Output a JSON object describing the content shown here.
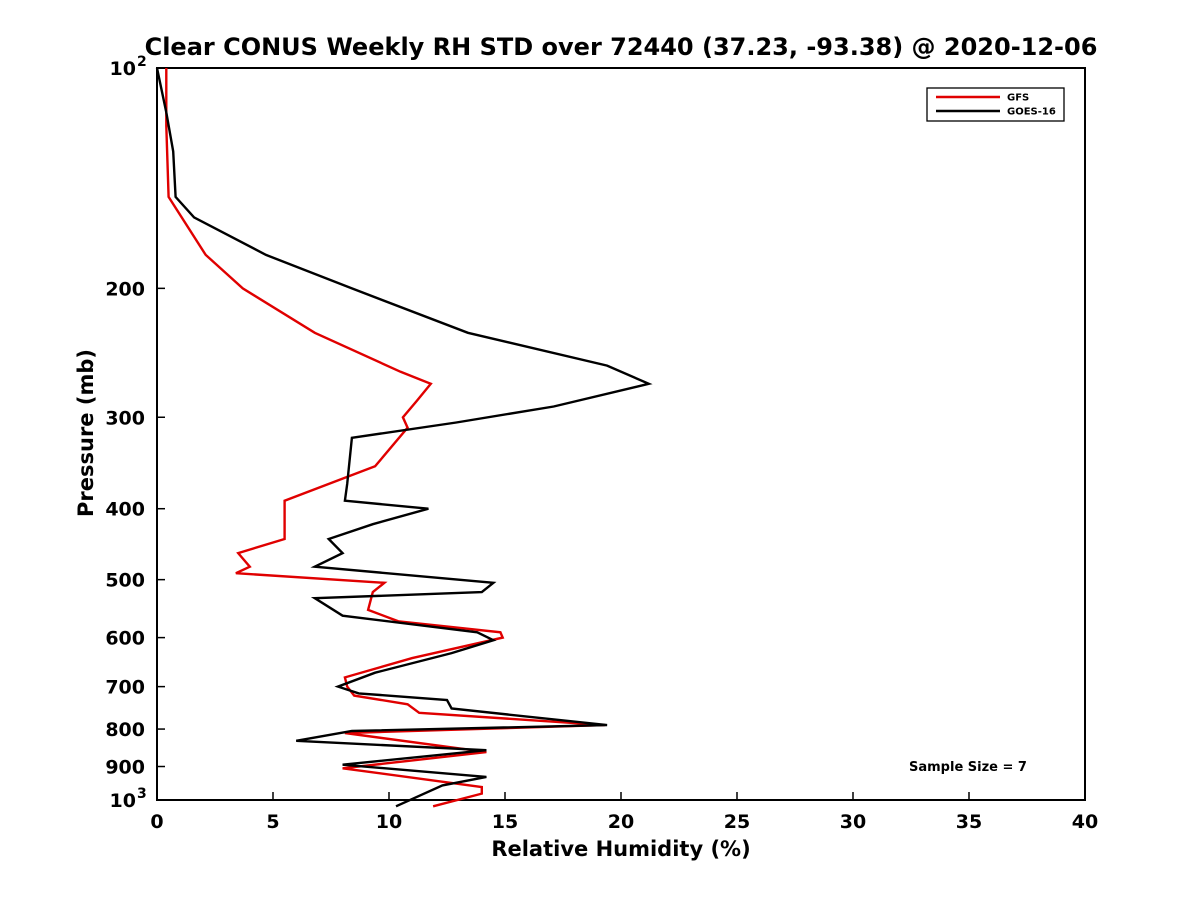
{
  "chart_data": {
    "type": "line",
    "title": "Clear CONUS Weekly RH STD over 72440 (37.23, -93.38) @ 2020-12-06",
    "xlabel": "Relative Humidity (%)",
    "ylabel": "Pressure (mb)",
    "xlim": [
      0,
      40
    ],
    "ylim": [
      100,
      1000
    ],
    "y_scale": "log",
    "y_reversed": true,
    "grid": false,
    "legend_position": "top-right",
    "x_ticks": [
      {
        "value": 0,
        "label": "0"
      },
      {
        "value": 5,
        "label": "5"
      },
      {
        "value": 10,
        "label": "10"
      },
      {
        "value": 15,
        "label": "15"
      },
      {
        "value": 20,
        "label": "20"
      },
      {
        "value": 25,
        "label": "25"
      },
      {
        "value": 30,
        "label": "30"
      },
      {
        "value": 35,
        "label": "35"
      },
      {
        "value": 40,
        "label": "40"
      }
    ],
    "y_ticks": [
      {
        "value": 100,
        "label": "10",
        "sup": "2"
      },
      {
        "value": 200,
        "label": "200",
        "sup": ""
      },
      {
        "value": 300,
        "label": "300",
        "sup": ""
      },
      {
        "value": 400,
        "label": "400",
        "sup": ""
      },
      {
        "value": 500,
        "label": "500",
        "sup": ""
      },
      {
        "value": 600,
        "label": "600",
        "sup": ""
      },
      {
        "value": 700,
        "label": "700",
        "sup": ""
      },
      {
        "value": 800,
        "label": "800",
        "sup": ""
      },
      {
        "value": 900,
        "label": "900",
        "sup": ""
      },
      {
        "value": 1000,
        "label": "10",
        "sup": "3"
      }
    ],
    "series": [
      {
        "name": "GFS",
        "color": "#e00000",
        "x": [
          0.4,
          0.4,
          0.5,
          2.1,
          3.7,
          6.8,
          10.5,
          11.8,
          11.2,
          10.6,
          10.8,
          9.4,
          5.5,
          5.5,
          3.5,
          4.0,
          3.4,
          9.8,
          9.3,
          9.1,
          10.4,
          14.8,
          14.9,
          11.0,
          8.1,
          8.2,
          8.5,
          10.8,
          11.3,
          19.3,
          8.1,
          14.2,
          8.0,
          14.0,
          14.0,
          11.9
        ],
        "y": [
          100,
          120,
          150,
          180,
          200,
          230,
          260,
          270,
          285,
          300,
          310,
          350,
          390,
          440,
          460,
          480,
          490,
          505,
          520,
          550,
          570,
          590,
          600,
          640,
          680,
          700,
          720,
          740,
          760,
          790,
          810,
          860,
          905,
          960,
          980,
          1020
        ]
      },
      {
        "name": "GOES-16",
        "color": "#000000",
        "x": [
          0.0,
          0.4,
          0.7,
          0.8,
          1.6,
          4.7,
          8.4,
          13.4,
          19.4,
          21.2,
          17.1,
          12.9,
          8.4,
          8.2,
          8.1,
          11.7,
          9.3,
          7.4,
          8.0,
          6.8,
          14.5,
          14.0,
          6.8,
          8.0,
          13.8,
          14.5,
          12.7,
          9.4,
          7.8,
          8.7,
          12.5,
          12.7,
          19.4,
          8.4,
          6.0,
          14.2,
          8.0,
          14.2,
          12.3,
          10.3
        ],
        "y": [
          100,
          115,
          130,
          150,
          160,
          180,
          200,
          230,
          255,
          270,
          290,
          305,
          320,
          370,
          390,
          400,
          420,
          440,
          460,
          480,
          505,
          520,
          530,
          560,
          590,
          605,
          630,
          670,
          700,
          715,
          730,
          750,
          790,
          805,
          830,
          855,
          895,
          930,
          955,
          1020
        ]
      }
    ],
    "legend": [
      {
        "label": "GFS",
        "color": "#e00000"
      },
      {
        "label": "GOES-16",
        "color": "#000000"
      }
    ],
    "annotations": [
      {
        "text": "Sample Size = 7"
      }
    ]
  }
}
